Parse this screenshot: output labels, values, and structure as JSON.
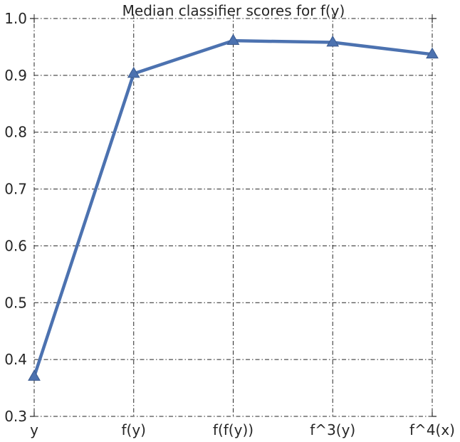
{
  "chart_data": {
    "type": "line",
    "title": "Median classifier scores for f(y)",
    "xlabel": "",
    "ylabel": "",
    "categories": [
      "y",
      "f(y)",
      "f(f(y))",
      "f^3(y)",
      "f^4(x)"
    ],
    "series": [
      {
        "values": [
          0.37,
          0.903,
          0.961,
          0.958,
          0.937
        ]
      }
    ],
    "ylim": [
      0.3,
      1.0
    ],
    "yticks": [
      "0.3",
      "0.4",
      "0.5",
      "0.6",
      "0.7",
      "0.8",
      "0.9",
      "1.0"
    ],
    "grid": true,
    "marker": "triangle",
    "line_color": "#4c72b0",
    "grid_color": "#262626"
  }
}
